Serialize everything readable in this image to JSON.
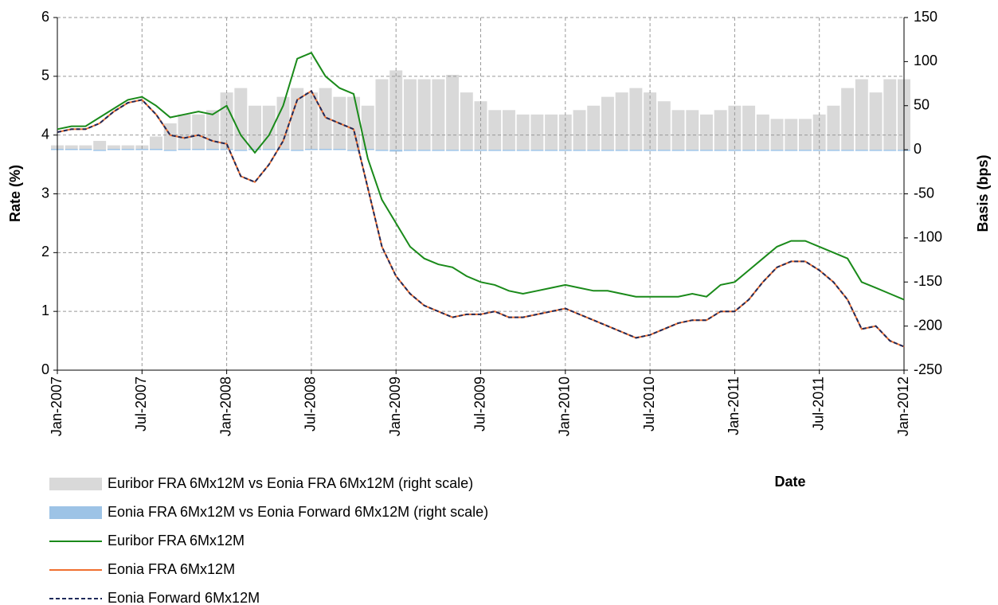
{
  "chart_data": {
    "type": "bar_line",
    "x_label": "Date",
    "y_label": "Rate (%)",
    "y2_label": "Basis (bps)",
    "categories": [
      "Jan-2007",
      null,
      null,
      null,
      null,
      null,
      "Jul-2007",
      null,
      null,
      null,
      null,
      null,
      "Jan-2008",
      null,
      null,
      null,
      null,
      null,
      "Jul-2008",
      null,
      null,
      null,
      null,
      null,
      "Jan-2009",
      null,
      null,
      null,
      null,
      null,
      "Jul-2009",
      null,
      null,
      null,
      null,
      null,
      "Jan-2010",
      null,
      null,
      null,
      null,
      null,
      "Jul-2010",
      null,
      null,
      null,
      null,
      null,
      "Jan-2011",
      null,
      null,
      null,
      null,
      null,
      "Jul-2011",
      null,
      null,
      null,
      null,
      null,
      "Jan-2012"
    ],
    "ylim": [
      0,
      6
    ],
    "yticks": [
      0,
      1,
      2,
      3,
      4,
      5,
      6
    ],
    "y2lim": [
      -250,
      150
    ],
    "y2ticks": [
      -250,
      -200,
      -150,
      -100,
      -50,
      0,
      50,
      100,
      150
    ],
    "grid": true,
    "series": [
      {
        "name": "Euribor FRA 6Mx12M vs Eonia FRA 6Mx12M (right scale)",
        "kind": "bar",
        "axis": "y2",
        "color": "#d9d9d9",
        "values": [
          5,
          5,
          5,
          10,
          5,
          5,
          5,
          15,
          30,
          40,
          40,
          45,
          65,
          70,
          50,
          50,
          60,
          70,
          65,
          70,
          60,
          60,
          50,
          80,
          90,
          80,
          80,
          80,
          85,
          65,
          55,
          45,
          45,
          40,
          40,
          40,
          40,
          45,
          50,
          60,
          65,
          70,
          65,
          55,
          45,
          45,
          40,
          45,
          50,
          50,
          40,
          35,
          35,
          35,
          40,
          50,
          70,
          80,
          65,
          80,
          80
        ]
      },
      {
        "name": "Eonia FRA 6Mx12M vs Eonia Forward 6Mx12M (right scale)",
        "kind": "bar",
        "axis": "y2",
        "color": "#9dc3e6",
        "values": [
          1,
          1,
          1,
          0,
          1,
          1,
          1,
          1,
          0,
          1,
          1,
          1,
          1,
          0,
          1,
          1,
          1,
          0,
          1,
          1,
          1,
          0,
          1,
          -1,
          -2,
          -1,
          -1,
          0,
          -1,
          -1,
          -1,
          0,
          -1,
          -1,
          0,
          -1,
          -1,
          0,
          -1,
          -1,
          0,
          -1,
          -1,
          0,
          -1,
          -1,
          0,
          -1,
          0,
          -1,
          -1,
          -1,
          -1,
          0,
          -1,
          -1,
          -1,
          0,
          -1,
          -1,
          -1
        ]
      },
      {
        "name": "Euribor FRA 6Mx12M",
        "kind": "line",
        "color": "#1a8a1a",
        "values": [
          4.1,
          4.15,
          4.15,
          4.3,
          4.45,
          4.6,
          4.65,
          4.5,
          4.3,
          4.35,
          4.4,
          4.35,
          4.5,
          4.0,
          3.7,
          4.0,
          4.5,
          5.3,
          5.4,
          5.0,
          4.8,
          4.7,
          3.6,
          2.9,
          2.5,
          2.1,
          1.9,
          1.8,
          1.75,
          1.6,
          1.5,
          1.45,
          1.35,
          1.3,
          1.35,
          1.4,
          1.45,
          1.4,
          1.35,
          1.35,
          1.3,
          1.25,
          1.25,
          1.25,
          1.25,
          1.3,
          1.25,
          1.45,
          1.5,
          1.7,
          1.9,
          2.1,
          2.2,
          2.2,
          2.1,
          2.0,
          1.9,
          1.5,
          1.4,
          1.3,
          1.2
        ]
      },
      {
        "name": "Eonia FRA 6Mx12M",
        "kind": "line",
        "color": "#f07030",
        "values": [
          4.05,
          4.1,
          4.1,
          4.2,
          4.4,
          4.55,
          4.6,
          4.35,
          4.0,
          3.95,
          4.0,
          3.9,
          3.85,
          3.3,
          3.2,
          3.5,
          3.9,
          4.6,
          4.75,
          4.3,
          4.2,
          4.1,
          3.1,
          2.1,
          1.6,
          1.3,
          1.1,
          1.0,
          0.9,
          0.95,
          0.95,
          1.0,
          0.9,
          0.9,
          0.95,
          1.0,
          1.05,
          0.95,
          0.85,
          0.75,
          0.65,
          0.55,
          0.6,
          0.7,
          0.8,
          0.85,
          0.85,
          1.0,
          1.0,
          1.2,
          1.5,
          1.75,
          1.85,
          1.85,
          1.7,
          1.5,
          1.2,
          0.7,
          0.75,
          0.5,
          0.4
        ]
      },
      {
        "name": "Eonia Forward 6Mx12M",
        "kind": "line",
        "dashed": true,
        "color": "#1f2a5a",
        "values": [
          4.05,
          4.1,
          4.1,
          4.2,
          4.4,
          4.55,
          4.6,
          4.35,
          4.0,
          3.95,
          4.0,
          3.9,
          3.85,
          3.3,
          3.2,
          3.5,
          3.9,
          4.6,
          4.75,
          4.3,
          4.2,
          4.1,
          3.1,
          2.1,
          1.6,
          1.3,
          1.1,
          1.0,
          0.9,
          0.95,
          0.95,
          1.0,
          0.9,
          0.9,
          0.95,
          1.0,
          1.05,
          0.95,
          0.85,
          0.75,
          0.65,
          0.55,
          0.6,
          0.7,
          0.8,
          0.85,
          0.85,
          1.0,
          1.0,
          1.2,
          1.5,
          1.75,
          1.85,
          1.85,
          1.7,
          1.5,
          1.2,
          0.7,
          0.75,
          0.5,
          0.4
        ]
      }
    ]
  }
}
